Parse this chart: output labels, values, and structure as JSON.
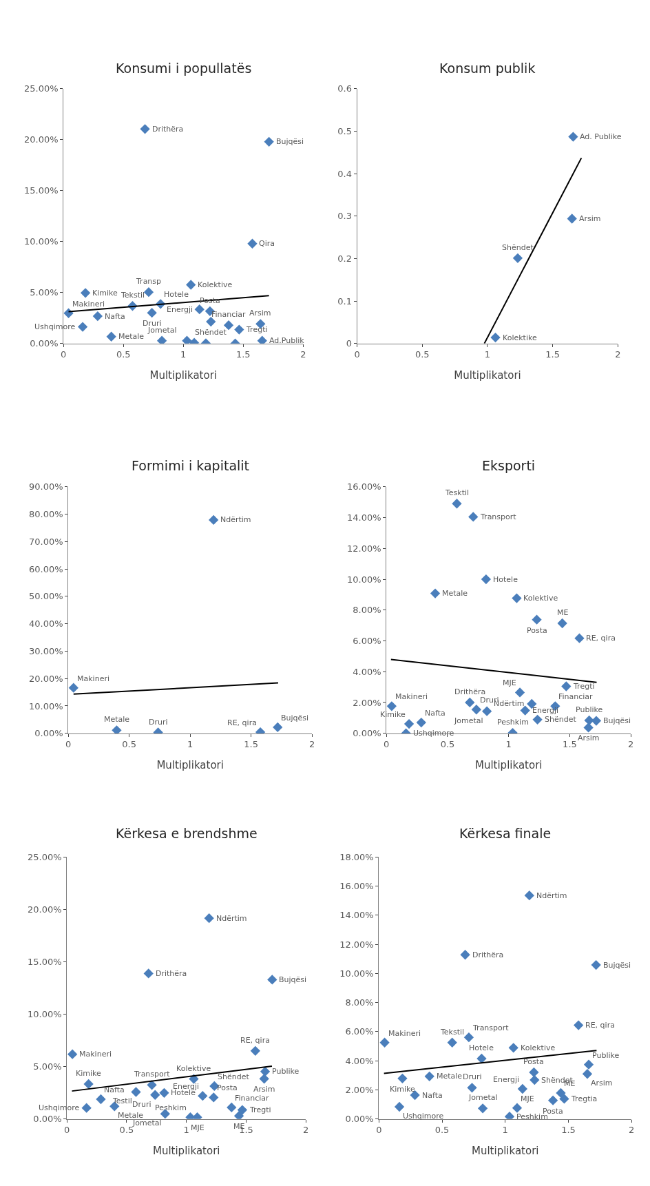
{
  "chart_data": [
    {
      "type": "scatter",
      "title": "Konsumi i popullatës",
      "xlabel": "Multiplikatori",
      "marker": "diamond",
      "xlim": [
        0,
        2
      ],
      "xticks": [
        0,
        0.5,
        1,
        1.5,
        2
      ],
      "ylim": [
        0,
        25
      ],
      "yticks": [
        {
          "value": 0,
          "label": "0.00%"
        },
        {
          "value": 5,
          "label": "5.00%"
        },
        {
          "value": 10,
          "label": "10.00%"
        },
        {
          "value": 15,
          "label": "15.00%"
        },
        {
          "value": 20,
          "label": "20.00%"
        },
        {
          "value": 25,
          "label": "25.00%"
        }
      ],
      "series": [
        {
          "color": "#4a7ebb",
          "x": [
            0.68,
            1.715,
            1.576,
            1.063,
            0.711,
            0.183,
            0.576,
            0.81,
            0.042,
            0.285,
            0.738,
            1.135,
            1.222,
            1.23,
            1.378,
            1.644,
            1.466,
            0.16,
            0.399,
            0.821,
            1.658,
            1.03,
            1.091,
            1.188,
            1.433
          ],
          "values": [
            21.05,
            19.8,
            9.8,
            5.76,
            5.04,
            4.96,
            3.68,
            3.88,
            2.97,
            2.68,
            3.01,
            3.35,
            3.17,
            2.14,
            1.79,
            1.92,
            1.36,
            1.63,
            0.67,
            0.27,
            0.27,
            0.27,
            0.07,
            0.02,
            0.0
          ]
        },
        {
          "type": "line",
          "marker": "none",
          "color": "#000000",
          "x": [
            0.042,
            1.715
          ],
          "values": [
            3.12,
            4.69
          ]
        }
      ],
      "annotations": [
        {
          "text": "Drithëra",
          "x": 0.68,
          "y": 21.05
        },
        {
          "text": "Bujqësi",
          "x": 1.715,
          "y": 19.8
        },
        {
          "text": "Qira",
          "x": 1.576,
          "y": 9.8
        },
        {
          "text": "Kolektive",
          "x": 1.063,
          "y": 5.76
        },
        {
          "text": "Transp",
          "x": 0.711,
          "y": 5.04
        },
        {
          "text": "Kimike",
          "x": 0.183,
          "y": 4.96
        },
        {
          "text": "Tekstil",
          "x": 0.576,
          "y": 3.68
        },
        {
          "text": "Hotele",
          "x": 0.81,
          "y": 3.88
        },
        {
          "text": "Makineri",
          "x": 0.042,
          "y": 2.97
        },
        {
          "text": "Nafta",
          "x": 0.285,
          "y": 2.68
        },
        {
          "text": "Druri",
          "x": 0.738,
          "y": 3.01
        },
        {
          "text": "Energji",
          "x": 1.135,
          "y": 3.35
        },
        {
          "text": "Posta",
          "x": 1.222,
          "y": 3.17
        },
        {
          "text": "Shëndet",
          "x": 1.23,
          "y": 2.14
        },
        {
          "text": "Financiar",
          "x": 1.378,
          "y": 1.79
        },
        {
          "text": "Arsim",
          "x": 1.644,
          "y": 1.92
        },
        {
          "text": "Tregti",
          "x": 1.466,
          "y": 1.36
        },
        {
          "text": "Ushqimore",
          "x": 0.16,
          "y": 1.63
        },
        {
          "text": "Metale",
          "x": 0.399,
          "y": 0.67
        },
        {
          "text": "Jometal",
          "x": 0.821,
          "y": 0.27
        },
        {
          "text": "Ad.Publik",
          "x": 1.658,
          "y": 0.27
        }
      ]
    },
    {
      "type": "scatter",
      "title": "Konsum publik",
      "xlabel": "Multiplikatori",
      "marker": "diamond",
      "xlim": [
        0,
        2
      ],
      "xticks": [
        0,
        0.5,
        1,
        1.5,
        2
      ],
      "ylim": [
        0,
        0.6
      ],
      "yticks": [
        0,
        0.1,
        0.2,
        0.3,
        0.4,
        0.5,
        0.6
      ],
      "series": [
        {
          "color": "#4a7ebb",
          "x": [
            1.657,
            1.648,
            1.232,
            1.061
          ],
          "values": [
            0.487,
            0.294,
            0.201,
            0.014
          ]
        },
        {
          "type": "line",
          "marker": "none",
          "color": "#000000",
          "x": [
            0.976,
            1.72
          ],
          "values": [
            0,
            0.437
          ]
        }
      ],
      "annotations": [
        {
          "text": "Ad. Publike",
          "x": 1.657,
          "y": 0.487
        },
        {
          "text": "Arsim",
          "x": 1.648,
          "y": 0.294
        },
        {
          "text": "Shëndet",
          "x": 1.232,
          "y": 0.201
        },
        {
          "text": "Kolektike",
          "x": 1.061,
          "y": 0.014
        }
      ]
    },
    {
      "type": "scatter",
      "title": "Formimi i kapitalit",
      "xlabel": "Multiplikatori",
      "marker": "diamond",
      "xlim": [
        0,
        2
      ],
      "xticks": [
        0,
        0.5,
        1,
        1.5,
        2
      ],
      "ylim": [
        0,
        90
      ],
      "yticks": [
        {
          "value": 0,
          "label": "0.00%"
        },
        {
          "value": 10,
          "label": "10.00%"
        },
        {
          "value": 20,
          "label": "20.00%"
        },
        {
          "value": 30,
          "label": "30.00%"
        },
        {
          "value": 40,
          "label": "40.00%"
        },
        {
          "value": 50,
          "label": "50.00%"
        },
        {
          "value": 60,
          "label": "60.00%"
        },
        {
          "value": 70,
          "label": "70.00%"
        },
        {
          "value": 80,
          "label": "80.00%"
        },
        {
          "value": 90,
          "label": "90.00%"
        }
      ],
      "series": [
        {
          "color": "#4a7ebb",
          "x": [
            1.192,
            0.043,
            0.397,
            0.737,
            1.576,
            1.718
          ],
          "values": [
            77.9,
            16.6,
            1.1,
            0.3,
            0.4,
            2.2
          ]
        },
        {
          "type": "line",
          "marker": "none",
          "color": "#000000",
          "x": [
            0.043,
            1.722
          ],
          "values": [
            14.3,
            18.4
          ]
        }
      ],
      "annotations": [
        {
          "text": "Ndërtim",
          "x": 1.192,
          "y": 77.9
        },
        {
          "text": "Makineri",
          "x": 0.043,
          "y": 16.6
        },
        {
          "text": "Metale",
          "x": 0.397,
          "y": 1.1
        },
        {
          "text": "Druri",
          "x": 0.737,
          "y": 0.3
        },
        {
          "text": "RE, qira",
          "x": 1.576,
          "y": 0.4
        },
        {
          "text": "Bujqësi",
          "x": 1.718,
          "y": 2.2
        }
      ]
    },
    {
      "type": "scatter",
      "title": "Eksporti",
      "xlabel": "Multiplikatori",
      "marker": "diamond",
      "xlim": [
        0,
        2
      ],
      "xticks": [
        0,
        0.5,
        1,
        1.5,
        2
      ],
      "ylim": [
        0,
        16
      ],
      "yticks": [
        {
          "value": 0,
          "label": "0.00%"
        },
        {
          "value": 2,
          "label": "2.00%"
        },
        {
          "value": 4,
          "label": "4.00%"
        },
        {
          "value": 6,
          "label": "6.00%"
        },
        {
          "value": 8,
          "label": "8.00%"
        },
        {
          "value": 10,
          "label": "10.00%"
        },
        {
          "value": 12,
          "label": "12.00%"
        },
        {
          "value": 14,
          "label": "14.00%"
        },
        {
          "value": 16,
          "label": "16.00%"
        }
      ],
      "series": [
        {
          "color": "#4a7ebb",
          "x": [
            0.576,
            0.71,
            0.815,
            0.399,
            1.066,
            1.23,
            1.439,
            1.579,
            1.471,
            1.092,
            0.682,
            0.736,
            0.822,
            1.189,
            1.135,
            1.381,
            1.236,
            1.659,
            1.717,
            1.653,
            1.033,
            0.043,
            0.185,
            0.285,
            0.16
          ],
          "values": [
            14.91,
            14.05,
            10.0,
            9.08,
            8.77,
            7.38,
            7.14,
            6.17,
            3.05,
            2.65,
            2.0,
            1.54,
            1.43,
            1.91,
            1.48,
            1.76,
            0.89,
            0.84,
            0.81,
            0.37,
            0.03,
            1.76,
            0.61,
            0.7,
            0.0
          ]
        },
        {
          "type": "line",
          "marker": "none",
          "color": "#000000",
          "x": [
            0.037,
            1.72
          ],
          "values": [
            4.79,
            3.31
          ]
        }
      ],
      "annotations": [
        {
          "text": "Tesktil",
          "x": 0.576,
          "y": 14.91
        },
        {
          "text": "Transport",
          "x": 0.71,
          "y": 14.05
        },
        {
          "text": "Hotele",
          "x": 0.815,
          "y": 10.0
        },
        {
          "text": "Metale",
          "x": 0.399,
          "y": 9.08
        },
        {
          "text": "Kolektive",
          "x": 1.066,
          "y": 8.77
        },
        {
          "text": "Posta",
          "x": 1.23,
          "y": 7.38
        },
        {
          "text": "ME",
          "x": 1.439,
          "y": 7.14
        },
        {
          "text": "RE, qira",
          "x": 1.579,
          "y": 6.17
        },
        {
          "text": "Tregti",
          "x": 1.471,
          "y": 3.05
        },
        {
          "text": "MJE",
          "x": 1.092,
          "y": 2.65
        },
        {
          "text": "Drithëra",
          "x": 0.682,
          "y": 2.0
        },
        {
          "text": "Druri",
          "x": 0.736,
          "y": 1.54
        },
        {
          "text": "Jometal",
          "x": 0.822,
          "y": 1.43
        },
        {
          "text": "Ndërtim",
          "x": 1.189,
          "y": 1.91
        },
        {
          "text": "Energji",
          "x": 1.135,
          "y": 1.48
        },
        {
          "text": "Financiar",
          "x": 1.381,
          "y": 1.76
        },
        {
          "text": "Shëndet",
          "x": 1.236,
          "y": 0.89
        },
        {
          "text": "Publike",
          "x": 1.659,
          "y": 0.84
        },
        {
          "text": "Bujqësi",
          "x": 1.717,
          "y": 0.81
        },
        {
          "text": "Arsim",
          "x": 1.653,
          "y": 0.37
        },
        {
          "text": "Peshkim",
          "x": 1.033,
          "y": 0.03
        },
        {
          "text": "Makineri",
          "x": 0.043,
          "y": 1.76
        },
        {
          "text": "Kimike",
          "x": 0.185,
          "y": 0.61
        },
        {
          "text": "Nafta",
          "x": 0.285,
          "y": 0.7
        },
        {
          "text": "Ushqimore",
          "x": 0.16,
          "y": 0.0
        }
      ]
    },
    {
      "type": "scatter",
      "title": "Kërkesa e brendshme",
      "xlabel": "Multiplikatori",
      "marker": "diamond",
      "xlim": [
        0,
        2
      ],
      "xticks": [
        0,
        0.5,
        1,
        1.5,
        2
      ],
      "ylim": [
        0,
        25
      ],
      "yticks": [
        {
          "value": 0,
          "label": "0.00%"
        },
        {
          "value": 5,
          "label": "5.00%"
        },
        {
          "value": 10,
          "label": "10.00%"
        },
        {
          "value": 15,
          "label": "15.00%"
        },
        {
          "value": 20,
          "label": "20.00%"
        },
        {
          "value": 25,
          "label": "25.00%"
        }
      ],
      "series": [
        {
          "color": "#4a7ebb",
          "x": [
            1.19,
            0.683,
            1.718,
            1.577,
            0.046,
            1.659,
            1.651,
            1.062,
            0.181,
            0.711,
            1.234,
            0.578,
            0.814,
            0.738,
            1.136,
            1.228,
            0.284,
            0.398,
            0.164,
            1.378,
            1.468,
            0.822,
            1.033,
            1.091,
            1.44
          ],
          "values": [
            19.15,
            13.88,
            13.29,
            6.5,
            6.18,
            4.53,
            3.84,
            3.82,
            3.34,
            3.25,
            3.14,
            2.58,
            2.49,
            2.3,
            2.21,
            2.06,
            1.89,
            1.21,
            1.06,
            1.11,
            0.87,
            0.5,
            0.17,
            0.17,
            0.3
          ]
        },
        {
          "type": "line",
          "marker": "none",
          "color": "#000000",
          "x": [
            0.042,
            1.716
          ],
          "values": [
            2.67,
            5.05
          ]
        }
      ],
      "annotations": [
        {
          "text": "Ndërtim",
          "x": 1.19,
          "y": 19.15
        },
        {
          "text": "Drithëra",
          "x": 0.683,
          "y": 13.88
        },
        {
          "text": "Bujqësi",
          "x": 1.718,
          "y": 13.29
        },
        {
          "text": "RE, qira",
          "x": 1.577,
          "y": 6.5
        },
        {
          "text": "Makineri",
          "x": 0.046,
          "y": 6.18
        },
        {
          "text": "Publike",
          "x": 1.659,
          "y": 4.53
        },
        {
          "text": "Arsim",
          "x": 1.651,
          "y": 3.84
        },
        {
          "text": "Kolektive",
          "x": 1.062,
          "y": 3.82
        },
        {
          "text": "Kimike",
          "x": 0.181,
          "y": 3.34
        },
        {
          "text": "Transport",
          "x": 0.711,
          "y": 3.25
        },
        {
          "text": "Shëndet",
          "x": 1.234,
          "y": 3.14
        },
        {
          "text": "Testil",
          "x": 0.578,
          "y": 2.58
        },
        {
          "text": "Hotele",
          "x": 0.814,
          "y": 2.49
        },
        {
          "text": "Druri",
          "x": 0.738,
          "y": 2.3
        },
        {
          "text": "Energji",
          "x": 1.136,
          "y": 2.21
        },
        {
          "text": "Posta",
          "x": 1.228,
          "y": 2.06
        },
        {
          "text": "Nafta",
          "x": 0.284,
          "y": 1.89
        },
        {
          "text": "Metale",
          "x": 0.398,
          "y": 1.21
        },
        {
          "text": "Ushqimore",
          "x": 0.164,
          "y": 1.06
        },
        {
          "text": "Financiar",
          "x": 1.378,
          "y": 1.11
        },
        {
          "text": "Tregti",
          "x": 1.468,
          "y": 0.87
        },
        {
          "text": "Jometal",
          "x": 0.822,
          "y": 0.5
        },
        {
          "text": "Peshkim",
          "x": 1.033,
          "y": 0.17
        },
        {
          "text": "MJE",
          "x": 1.091,
          "y": 0.17
        },
        {
          "text": "ME",
          "x": 1.44,
          "y": 0.3
        }
      ]
    },
    {
      "type": "scatter",
      "title": "Kërkesa finale",
      "xlabel": "Multiplikatori",
      "marker": "diamond",
      "xlim": [
        0,
        2
      ],
      "xticks": [
        0,
        0.5,
        1,
        1.5,
        2
      ],
      "ylim": [
        0,
        18
      ],
      "yticks": [
        {
          "value": 0,
          "label": "0.00%"
        },
        {
          "value": 2,
          "label": "2.00%"
        },
        {
          "value": 4,
          "label": "4.00%"
        },
        {
          "value": 6,
          "label": "6.00%"
        },
        {
          "value": 8,
          "label": "8.00%"
        },
        {
          "value": 10,
          "label": "10.00%"
        },
        {
          "value": 12,
          "label": "12.00%"
        },
        {
          "value": 14,
          "label": "14.00%"
        },
        {
          "value": 16,
          "label": "16.00%"
        },
        {
          "value": 18,
          "label": "18.00%"
        }
      ],
      "series": [
        {
          "color": "#4a7ebb",
          "x": [
            1.191,
            0.683,
            1.719,
            1.58,
            0.045,
            0.58,
            0.712,
            1.065,
            0.813,
            1.661,
            1.227,
            1.65,
            0.4,
            0.186,
            1.232,
            0.737,
            1.137,
            1.44,
            0.285,
            1.467,
            1.378,
            0.162,
            0.822,
            1.094,
            1.034
          ],
          "values": [
            15.35,
            11.28,
            10.58,
            6.44,
            5.25,
            5.25,
            5.61,
            4.89,
            4.15,
            3.74,
            3.21,
            3.1,
            2.93,
            2.79,
            2.68,
            2.15,
            2.07,
            1.79,
            1.64,
            1.39,
            1.28,
            0.84,
            0.73,
            0.76,
            0.17
          ]
        },
        {
          "type": "line",
          "marker": "none",
          "color": "#000000",
          "x": [
            0.04,
            1.723
          ],
          "values": [
            3.13,
            4.71
          ]
        }
      ],
      "annotations": [
        {
          "text": "Ndërtim",
          "x": 1.191,
          "y": 15.35
        },
        {
          "text": "Drithëra",
          "x": 0.683,
          "y": 11.28
        },
        {
          "text": "Bujqësi",
          "x": 1.719,
          "y": 10.58
        },
        {
          "text": "RE, qira",
          "x": 1.58,
          "y": 6.44
        },
        {
          "text": "Makineri",
          "x": 0.045,
          "y": 5.25
        },
        {
          "text": "Tekstil",
          "x": 0.58,
          "y": 5.25
        },
        {
          "text": "Transport",
          "x": 0.712,
          "y": 5.61
        },
        {
          "text": "Kolektive",
          "x": 1.065,
          "y": 4.89
        },
        {
          "text": "Hotele",
          "x": 0.813,
          "y": 4.15
        },
        {
          "text": "Publike",
          "x": 1.661,
          "y": 3.74
        },
        {
          "text": "Posta",
          "x": 1.227,
          "y": 3.21
        },
        {
          "text": "Arsim",
          "x": 1.65,
          "y": 3.1
        },
        {
          "text": "Metale",
          "x": 0.4,
          "y": 2.93
        },
        {
          "text": "Kimike",
          "x": 0.186,
          "y": 2.79
        },
        {
          "text": "Shëndet",
          "x": 1.232,
          "y": 2.68
        },
        {
          "text": "Druri",
          "x": 0.737,
          "y": 2.15
        },
        {
          "text": "Energji",
          "x": 1.137,
          "y": 2.07
        },
        {
          "text": "ME",
          "x": 1.44,
          "y": 1.79
        },
        {
          "text": "Nafta",
          "x": 0.285,
          "y": 1.64
        },
        {
          "text": "Tregtia",
          "x": 1.467,
          "y": 1.39
        },
        {
          "text": "Posta",
          "x": 1.378,
          "y": 1.28
        },
        {
          "text": "Ushqimore",
          "x": 0.162,
          "y": 0.84
        },
        {
          "text": "Jometal",
          "x": 0.822,
          "y": 0.73
        },
        {
          "text": "MJE",
          "x": 1.094,
          "y": 0.76
        },
        {
          "text": "Peshkim",
          "x": 1.034,
          "y": 0.17
        }
      ]
    }
  ]
}
